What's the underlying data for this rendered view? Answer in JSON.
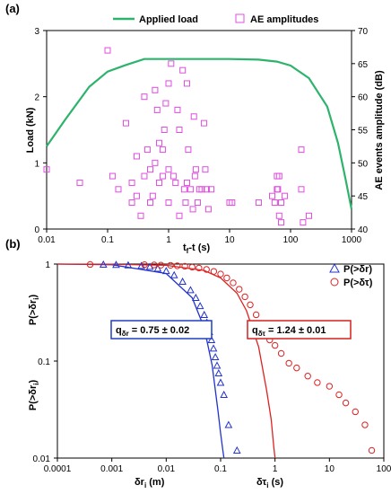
{
  "chart_data": [
    {
      "type": "line+scatter",
      "panel_label": "(a)",
      "xlabel": "t",
      "xlabel_sub": "f",
      "xlabel_rest": "-t (s)",
      "xscale": "log",
      "xlim": [
        0.01,
        1000
      ],
      "xticks": [
        0.01,
        0.1,
        1,
        10,
        100,
        1000
      ],
      "xtick_labels": [
        "0.01",
        "0.1",
        "1",
        "10",
        "100",
        "1000"
      ],
      "ylabel": "Load (kN)",
      "ylim": [
        0,
        3
      ],
      "yticks": [
        0,
        1,
        2,
        3
      ],
      "ytick_labels": [
        "0",
        "1",
        "2",
        "3"
      ],
      "y2label": "AE events amplitude (dB)",
      "y2lim": [
        40,
        70
      ],
      "y2ticks": [
        40,
        45,
        50,
        55,
        60,
        65,
        70
      ],
      "y2tick_labels": [
        "40",
        "45",
        "50",
        "55",
        "60",
        "65",
        "70"
      ],
      "legend_position": "top",
      "series": [
        {
          "name": "Applied load",
          "type": "line",
          "color": "#2db36b",
          "axis": "left",
          "x": [
            0.01,
            0.02,
            0.05,
            0.1,
            0.2,
            0.4,
            1,
            3,
            10,
            30,
            60,
            100,
            200,
            400,
            600,
            800,
            1000
          ],
          "y": [
            1.25,
            1.65,
            2.15,
            2.38,
            2.48,
            2.57,
            2.57,
            2.57,
            2.57,
            2.56,
            2.53,
            2.47,
            2.28,
            1.85,
            1.3,
            0.75,
            0.3
          ]
        },
        {
          "name": "AE amplitudes",
          "type": "scatter",
          "marker": "square",
          "color": "#e04ce0",
          "axis": "right",
          "x": [
            0.01,
            0.035,
            0.1,
            0.12,
            0.15,
            0.2,
            0.25,
            0.25,
            0.3,
            0.3,
            0.35,
            0.4,
            0.4,
            0.45,
            0.5,
            0.5,
            0.55,
            0.6,
            0.6,
            0.65,
            0.7,
            0.7,
            0.8,
            0.8,
            0.85,
            0.9,
            1.0,
            1.0,
            1.0,
            1.1,
            1.2,
            1.3,
            1.4,
            1.5,
            1.5,
            1.7,
            1.8,
            1.9,
            2.0,
            2.0,
            2.1,
            2.3,
            2.5,
            2.6,
            2.7,
            2.8,
            3.0,
            3.2,
            3.5,
            3.8,
            4.0,
            4.2,
            4.5,
            5.0,
            10,
            11,
            30,
            50,
            55,
            60,
            60,
            62,
            65,
            65,
            70,
            70,
            80,
            150,
            150,
            160,
            200
          ],
          "y": [
            49,
            47,
            67,
            48,
            46,
            56,
            47,
            44,
            51,
            45,
            42,
            60,
            48,
            52,
            44,
            49,
            45,
            50,
            61,
            58,
            47,
            53,
            52,
            48,
            55,
            59,
            49,
            62,
            44,
            65,
            48,
            47,
            58,
            42,
            55,
            64,
            46,
            44,
            47,
            62,
            52,
            46,
            43,
            57,
            48,
            49,
            44,
            46,
            46,
            56,
            49,
            46,
            43,
            46,
            44,
            44,
            44,
            45,
            44,
            46,
            48,
            46,
            48,
            42,
            44,
            41,
            45,
            52,
            46,
            41,
            42
          ]
        }
      ]
    },
    {
      "type": "line+scatter",
      "panel_label": "(b)",
      "xscale": "log",
      "yscale": "log",
      "xlim": [
        0.0001,
        100
      ],
      "xticks": [
        0.0001,
        0.001,
        0.01,
        0.1,
        1,
        10,
        100
      ],
      "xtick_labels": [
        "0.0001",
        "0.001",
        "0.01",
        "0.1",
        "1",
        "10",
        "100"
      ],
      "ylim": [
        0.01,
        1
      ],
      "yticks": [
        0.01,
        0.1,
        1
      ],
      "ytick_labels": [
        "0.01",
        "0.1",
        "1"
      ],
      "ylabel_upper": "P(>δr",
      "ylabel_lower": "P(>δr",
      "ylabel_sub": "i",
      "xlabel_left": "δr",
      "xlabel_left_sub": "i",
      "xlabel_left_rest": " (m)",
      "xlabel_right": "δτ",
      "xlabel_right_sub": "i",
      "xlabel_right_rest": " (s)",
      "legend_position": "top-right",
      "annotations": [
        {
          "text": "q",
          "sub": "δr",
          "rest": " = 0.75 ± 0.02",
          "color": "#1f3fbf"
        },
        {
          "text": "q",
          "sub": "δτ",
          "rest": " = 1.24 ± 0.01",
          "color": "#d42020"
        }
      ],
      "series": [
        {
          "name": "P(>δr)",
          "type": "scatter",
          "marker": "triangle",
          "color": "#2233cc",
          "x": [
            0.0007,
            0.0012,
            0.002,
            0.0035,
            0.005,
            0.007,
            0.01,
            0.014,
            0.02,
            0.028,
            0.035,
            0.042,
            0.05,
            0.056,
            0.062,
            0.068,
            0.074,
            0.08,
            0.086,
            0.092,
            0.1,
            0.115,
            0.14,
            0.2
          ],
          "y": [
            0.99,
            0.985,
            0.975,
            0.96,
            0.94,
            0.9,
            0.85,
            0.77,
            0.66,
            0.54,
            0.45,
            0.37,
            0.3,
            0.25,
            0.2,
            0.165,
            0.135,
            0.11,
            0.09,
            0.075,
            0.06,
            0.045,
            0.022,
            0.012
          ]
        },
        {
          "name": "P(>δτ)",
          "type": "scatter",
          "marker": "circle",
          "color": "#dd2222",
          "x": [
            0.0004,
            0.004,
            0.006,
            0.008,
            0.012,
            0.016,
            0.022,
            0.03,
            0.04,
            0.055,
            0.075,
            0.1,
            0.13,
            0.17,
            0.22,
            0.28,
            0.35,
            0.45,
            0.55,
            0.65,
            0.8,
            1.0,
            1.3,
            1.8,
            2.5,
            4,
            6,
            10,
            15,
            20,
            30,
            45,
            60
          ],
          "y": [
            0.99,
            0.985,
            0.98,
            0.975,
            0.97,
            0.96,
            0.95,
            0.93,
            0.91,
            0.88,
            0.84,
            0.79,
            0.72,
            0.64,
            0.55,
            0.46,
            0.38,
            0.3,
            0.24,
            0.19,
            0.165,
            0.145,
            0.12,
            0.095,
            0.085,
            0.07,
            0.06,
            0.055,
            0.045,
            0.037,
            0.03,
            0.022,
            0.012
          ]
        },
        {
          "name": "",
          "type": "line",
          "color": "#2233cc",
          "x": [
            0.0001,
            0.001,
            0.01,
            0.03,
            0.05,
            0.07,
            0.09,
            0.1,
            0.11,
            0.115
          ],
          "y": [
            1.0,
            0.985,
            0.8,
            0.45,
            0.22,
            0.09,
            0.03,
            0.018,
            0.012,
            0.01
          ]
        },
        {
          "name": "",
          "type": "line",
          "color": "#dd2222",
          "x": [
            0.0001,
            0.001,
            0.01,
            0.05,
            0.1,
            0.2,
            0.3,
            0.5,
            0.7,
            0.85,
            0.95,
            1.0
          ],
          "y": [
            1.0,
            0.995,
            0.97,
            0.86,
            0.72,
            0.5,
            0.33,
            0.14,
            0.05,
            0.025,
            0.013,
            0.01
          ]
        }
      ]
    }
  ]
}
